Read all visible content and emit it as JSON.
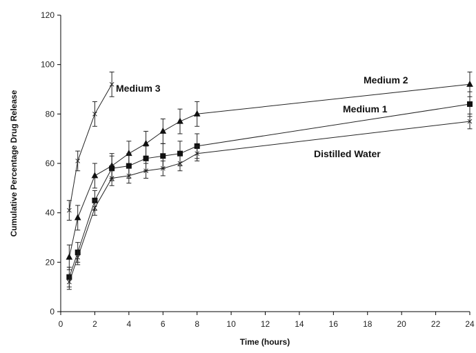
{
  "chart_data": {
    "type": "line",
    "title": "",
    "xlabel": "Time (hours)",
    "ylabel": "Cumulative Percentage Drug Release",
    "xlim": [
      0,
      24
    ],
    "ylim": [
      0,
      120
    ],
    "xticks": [
      "0",
      "2",
      "4",
      "6",
      "8",
      "10",
      "12",
      "14",
      "16",
      "18",
      "20",
      "22",
      "24"
    ],
    "yticks": [
      "0",
      "20",
      "40",
      "60",
      "80",
      "100",
      "120"
    ],
    "grid": false,
    "legend": "none",
    "series": [
      {
        "name": "Medium 3",
        "marker": "x",
        "x": [
          0.5,
          1,
          2,
          3
        ],
        "y": [
          41,
          61,
          80,
          92
        ],
        "err": [
          4,
          4,
          5,
          5
        ]
      },
      {
        "name": "Medium 2",
        "marker": "triangle",
        "x": [
          0.5,
          1,
          2,
          3,
          4,
          5,
          6,
          7,
          8,
          24
        ],
        "y": [
          22,
          38,
          55,
          59,
          64,
          68,
          73,
          77,
          80,
          92
        ],
        "err": [
          5,
          5,
          5,
          5,
          5,
          5,
          5,
          5,
          5,
          5
        ]
      },
      {
        "name": "Medium 1",
        "marker": "square",
        "x": [
          0.5,
          1,
          2,
          3,
          4,
          5,
          6,
          7,
          8,
          24
        ],
        "y": [
          14,
          24,
          45,
          58,
          59,
          62,
          63,
          64,
          67,
          84
        ],
        "err": [
          4,
          4,
          4,
          5,
          5,
          5,
          5,
          5,
          5,
          5
        ]
      },
      {
        "name": "Distilled Water",
        "marker": "x",
        "x": [
          0.5,
          1,
          2,
          3,
          4,
          5,
          6,
          7,
          8,
          24
        ],
        "y": [
          12,
          22,
          42,
          54,
          55,
          57,
          58,
          60,
          64,
          77
        ],
        "err": [
          3,
          3,
          3,
          3,
          3,
          3,
          3,
          3,
          3,
          3
        ]
      }
    ],
    "labels": [
      {
        "text": "Medium 3",
        "series": "Medium 3"
      },
      {
        "text": "Medium 2",
        "series": "Medium 2"
      },
      {
        "text": "Medium 1",
        "series": "Medium 1"
      },
      {
        "text": "Distilled Water",
        "series": "Distilled Water"
      }
    ]
  }
}
